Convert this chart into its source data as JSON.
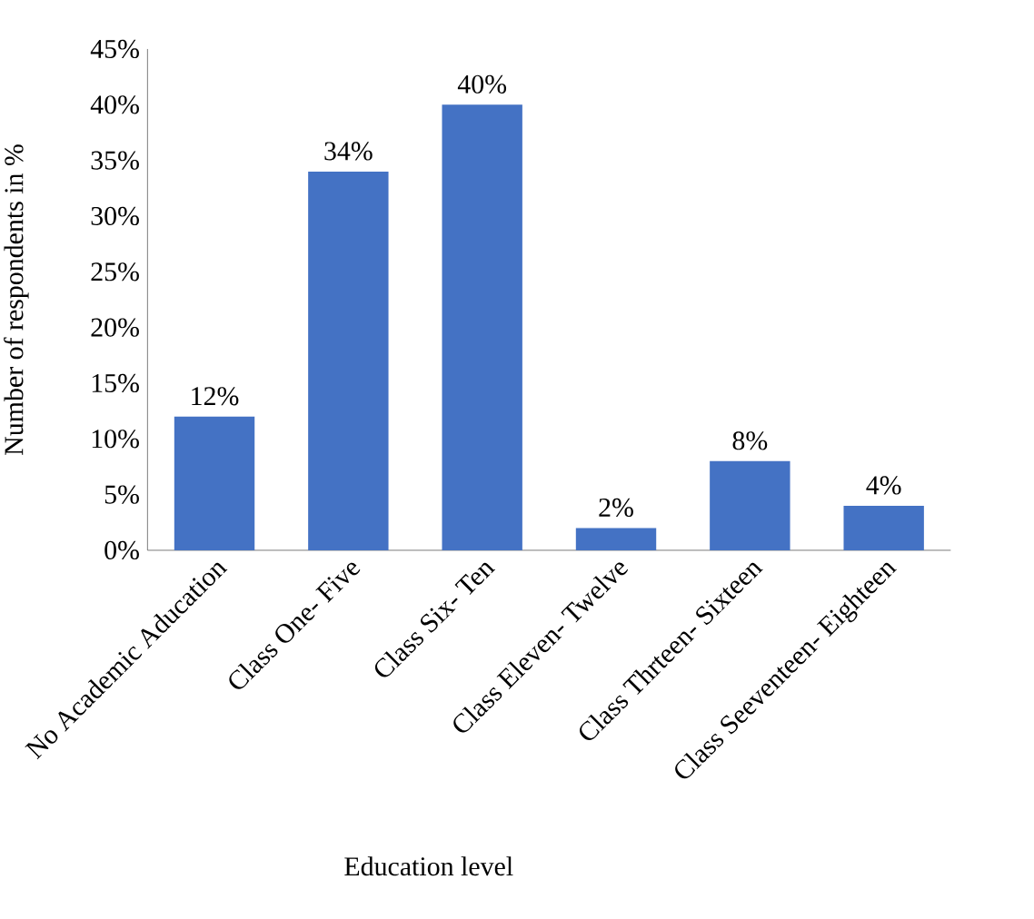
{
  "chart_data": {
    "type": "bar",
    "xlabel": "Education level",
    "ylabel": "Number of respondents in %",
    "categories": [
      "No Academic Aducation",
      "Class One- Five",
      "Class Six- Ten",
      "Class Eleven- Twelve",
      "Class Thrteen- Sixteen",
      "Class Seeventeen- Eighteen"
    ],
    "values": [
      12,
      34,
      40,
      2,
      8,
      4
    ],
    "value_labels": [
      "12%",
      "34%",
      "40%",
      "2%",
      "8%",
      "4%"
    ],
    "color": "#4472c4",
    "ylim": [
      0,
      45
    ],
    "yticks": [
      {
        "value": 0,
        "label": "0%"
      },
      {
        "value": 5,
        "label": "5%"
      },
      {
        "value": 10,
        "label": "10%"
      },
      {
        "value": 15,
        "label": "15%"
      },
      {
        "value": 20,
        "label": "20%"
      },
      {
        "value": 25,
        "label": "25%"
      },
      {
        "value": 30,
        "label": "30%"
      },
      {
        "value": 35,
        "label": "35%"
      },
      {
        "value": 40,
        "label": "40%"
      },
      {
        "value": 45,
        "label": "45%"
      }
    ]
  }
}
